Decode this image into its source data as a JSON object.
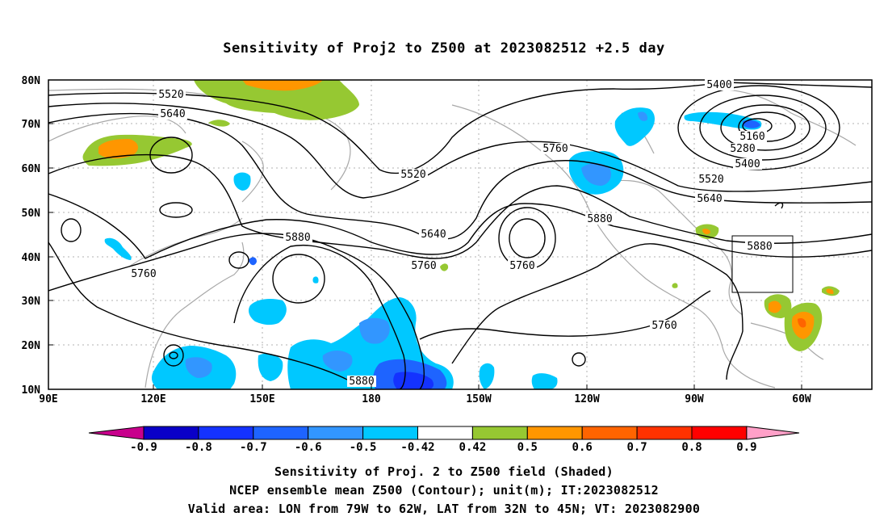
{
  "title": "Sensitivity of Proj2 to Z500 at 2023082512 +2.5 day",
  "lat_ticks": [
    "80N",
    "70N",
    "60N",
    "50N",
    "40N",
    "30N",
    "20N",
    "10N"
  ],
  "lon_ticks": [
    "90E",
    "120E",
    "150E",
    "180",
    "150W",
    "120W",
    "90W",
    "60W"
  ],
  "contour_labels": [
    "5400",
    "5520",
    "5640",
    "5160",
    "5280",
    "5400",
    "5520",
    "5640",
    "5760",
    "5520",
    "5880",
    "5640",
    "5760",
    "5760",
    "5880",
    "5760",
    "5880",
    "5760",
    "5880"
  ],
  "colorbar": {
    "labels": [
      "-0.9",
      "-0.8",
      "-0.7",
      "-0.6",
      "-0.5",
      "-0.42",
      "0.42",
      "0.5",
      "0.6",
      "0.7",
      "0.8",
      "0.9"
    ],
    "colors": [
      "#c8008c",
      "#0a00c8",
      "#1432ff",
      "#1e64ff",
      "#3296ff",
      "#00c8ff",
      "#ffffff",
      "#96c832",
      "#ff9600",
      "#ff6400",
      "#ff3200",
      "#ff0000",
      "#ffa0c8"
    ]
  },
  "captions": [
    "Sensitivity of Proj. 2 to Z500 field (Shaded)",
    "NCEP ensemble mean Z500 (Contour); unit(m); IT:2023082512",
    "Valid area: LON from 79W to 62W, LAT from 32N to 45N; VT: 2023082900"
  ]
}
